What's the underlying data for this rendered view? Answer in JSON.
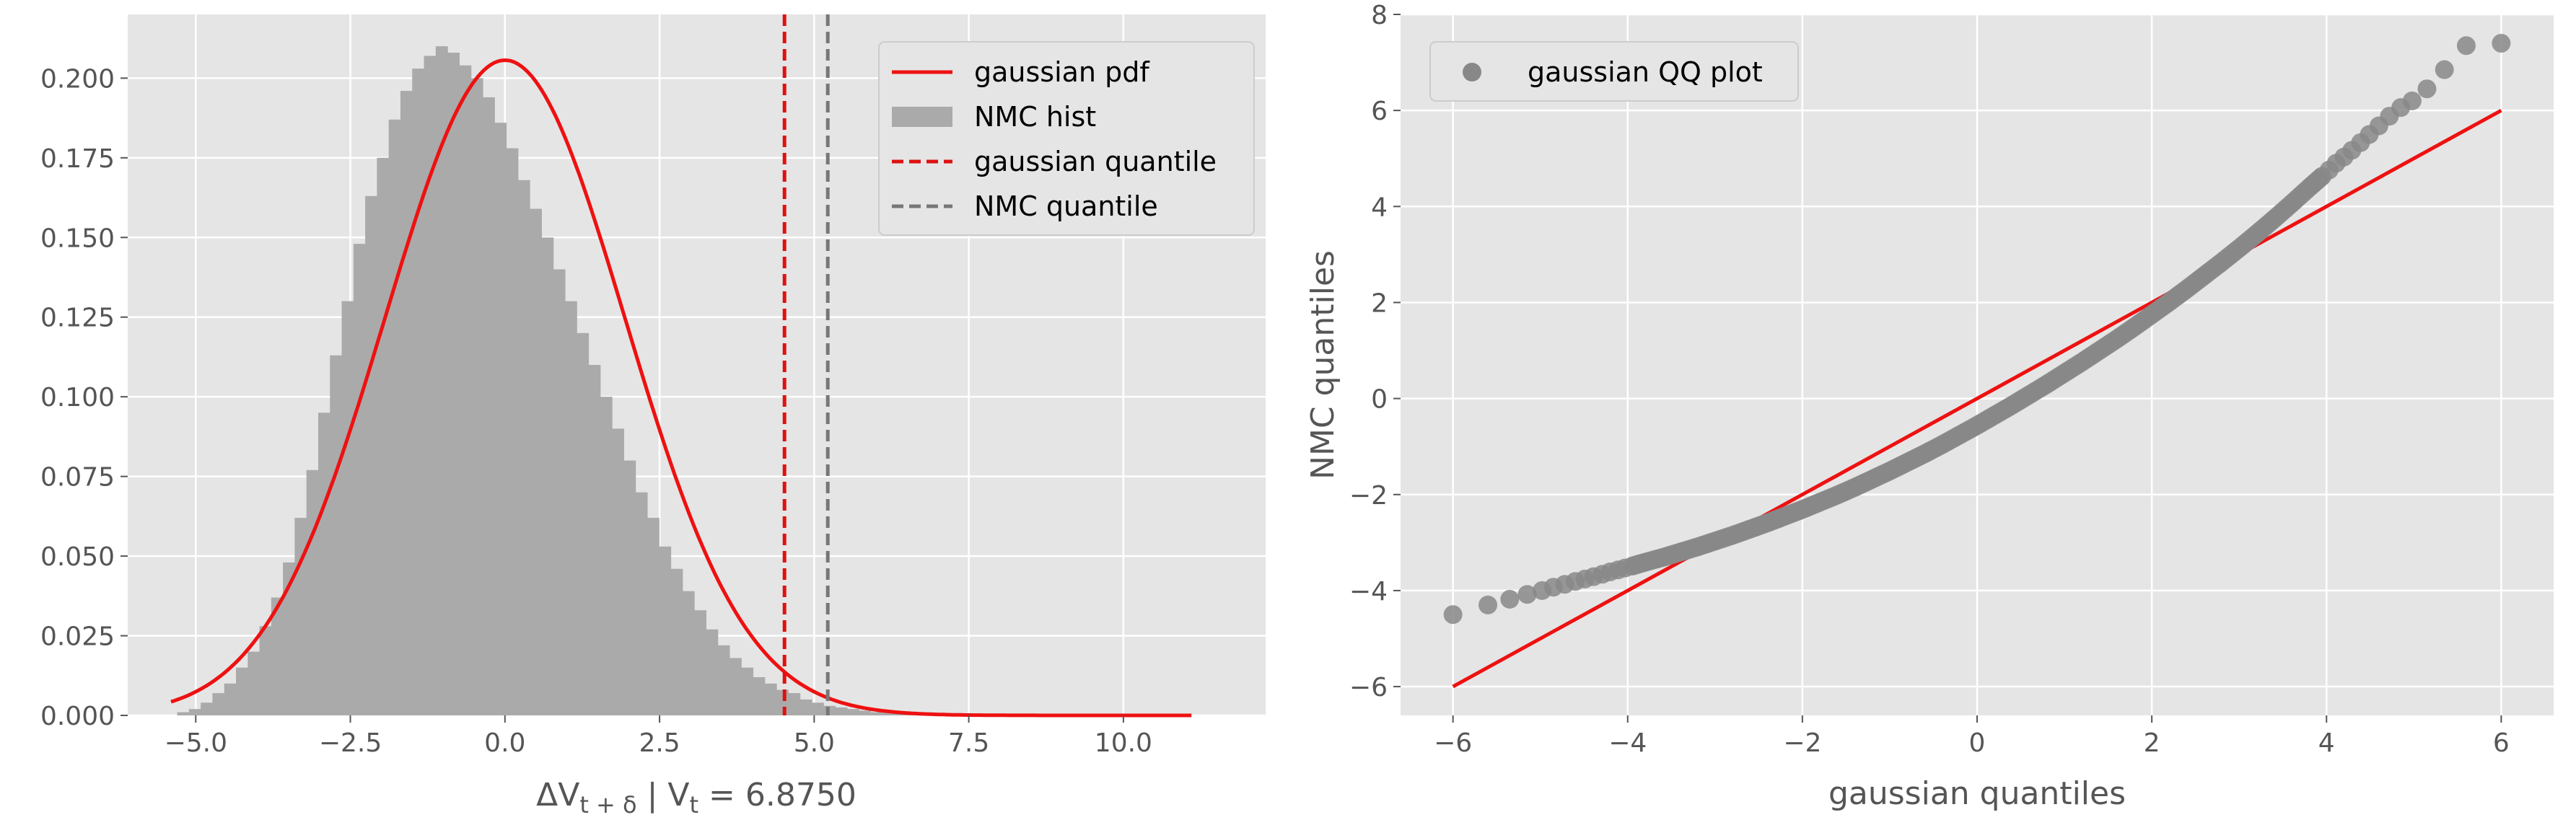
{
  "chart_data": [
    {
      "type": "bar",
      "title": "",
      "xlabel": "ΔV",
      "xlabel_sub": "t + δ",
      "xlabel_mid": " | V",
      "xlabel_sub2": "t",
      "xlabel_end": " = 6.8750",
      "xlim": [
        -6.1,
        12.3
      ],
      "ylim": [
        0,
        0.22
      ],
      "xticks": [
        -5.0,
        -2.5,
        0.0,
        2.5,
        5.0,
        7.5,
        10.0
      ],
      "xtick_labels": [
        "−5.0",
        "−2.5",
        "0.0",
        "2.5",
        "5.0",
        "7.5",
        "10.0"
      ],
      "yticks": [
        0.0,
        0.025,
        0.05,
        0.075,
        0.1,
        0.125,
        0.15,
        0.175,
        0.2
      ],
      "ytick_labels": [
        "0.000",
        "0.025",
        "0.050",
        "0.075",
        "0.100",
        "0.125",
        "0.150",
        "0.175",
        "0.200"
      ],
      "grid": true,
      "legend_position": "top-right",
      "legend": [
        "gaussian pdf",
        "NMC hist",
        "gaussian quantile",
        "NMC quantile"
      ],
      "histogram": {
        "name": "NMC hist",
        "color": "#aaaaaa",
        "bin_width": 0.19,
        "bin_start": -5.3,
        "values": [
          0.001,
          0.002,
          0.004,
          0.007,
          0.01,
          0.015,
          0.02,
          0.028,
          0.037,
          0.048,
          0.062,
          0.077,
          0.095,
          0.113,
          0.13,
          0.148,
          0.163,
          0.175,
          0.187,
          0.196,
          0.203,
          0.207,
          0.21,
          0.208,
          0.204,
          0.2,
          0.194,
          0.186,
          0.178,
          0.168,
          0.159,
          0.15,
          0.14,
          0.13,
          0.12,
          0.11,
          0.1,
          0.09,
          0.08,
          0.07,
          0.062,
          0.053,
          0.046,
          0.039,
          0.033,
          0.027,
          0.022,
          0.018,
          0.015,
          0.012,
          0.01,
          0.008,
          0.007,
          0.005,
          0.004,
          0.003,
          0.0025,
          0.002,
          0.0015,
          0.001,
          0.0008,
          0.0006,
          0.0004,
          0.0003,
          0.0002
        ]
      },
      "gaussian_pdf": {
        "name": "gaussian pdf",
        "color": "#ee1111",
        "mean": 0.0,
        "std": 1.94,
        "x_range": [
          -5.4,
          11.1
        ]
      },
      "gaussian_quantile": {
        "name": "gaussian quantile",
        "color": "#dd1111",
        "x": 4.52
      },
      "nmc_quantile": {
        "name": "NMC quantile",
        "color": "#777777",
        "x": 5.22
      }
    },
    {
      "type": "scatter",
      "title": "",
      "xlabel": "gaussian quantiles",
      "ylabel": "NMC quantiles",
      "xlim": [
        -6.6,
        6.6
      ],
      "ylim": [
        -6.6,
        8.0
      ],
      "xticks": [
        -6,
        -4,
        -2,
        0,
        2,
        4,
        6
      ],
      "xtick_labels": [
        "−6",
        "−4",
        "−2",
        "0",
        "2",
        "4",
        "6"
      ],
      "yticks": [
        -6,
        -4,
        -2,
        0,
        2,
        4,
        6,
        8
      ],
      "ytick_labels": [
        "−6",
        "−4",
        "−2",
        "0",
        "2",
        "4",
        "6",
        "8"
      ],
      "grid": true,
      "legend_position": "top-left",
      "legend": [
        "gaussian QQ plot"
      ],
      "points": {
        "name": "gaussian QQ plot",
        "color": "#888888",
        "x": [
          -6.0,
          -5.6,
          -5.35,
          -5.15,
          -4.98,
          -4.85,
          -4.72,
          -4.6,
          -4.49,
          -4.39,
          -4.29,
          -4.2,
          -4.11,
          -4.03,
          -3.95,
          -3.8,
          -3.6,
          -3.4,
          -3.2,
          -3.0,
          -2.8,
          -2.6,
          -2.4,
          -2.2,
          -2.0,
          -1.8,
          -1.6,
          -1.4,
          -1.2,
          -1.0,
          -0.8,
          -0.6,
          -0.4,
          -0.2,
          0.0,
          0.2,
          0.4,
          0.6,
          0.8,
          1.0,
          1.2,
          1.4,
          1.6,
          1.8,
          2.0,
          2.2,
          2.4,
          2.6,
          2.8,
          3.0,
          3.2,
          3.4,
          3.6,
          3.8,
          3.95,
          4.03,
          4.11,
          4.2,
          4.29,
          4.39,
          4.49,
          4.6,
          4.72,
          4.85,
          4.98,
          5.15,
          5.35,
          5.6,
          6.0
        ],
        "y": [
          -4.5,
          -4.3,
          -4.18,
          -4.08,
          -4.0,
          -3.93,
          -3.87,
          -3.81,
          -3.76,
          -3.71,
          -3.66,
          -3.61,
          -3.57,
          -3.53,
          -3.49,
          -3.41,
          -3.31,
          -3.2,
          -3.09,
          -2.97,
          -2.85,
          -2.72,
          -2.59,
          -2.45,
          -2.31,
          -2.16,
          -2.01,
          -1.85,
          -1.68,
          -1.51,
          -1.33,
          -1.15,
          -0.96,
          -0.76,
          -0.56,
          -0.35,
          -0.14,
          0.08,
          0.3,
          0.53,
          0.76,
          1.0,
          1.24,
          1.49,
          1.75,
          2.01,
          2.28,
          2.56,
          2.84,
          3.13,
          3.43,
          3.74,
          4.06,
          4.39,
          4.63,
          4.76,
          4.9,
          5.03,
          5.17,
          5.33,
          5.5,
          5.68,
          5.88,
          6.06,
          6.2,
          6.45,
          6.85,
          7.35,
          7.4
        ]
      },
      "reference_line": {
        "color": "#ee1111",
        "x": [
          -6,
          6
        ],
        "y": [
          -6,
          6
        ]
      }
    }
  ]
}
